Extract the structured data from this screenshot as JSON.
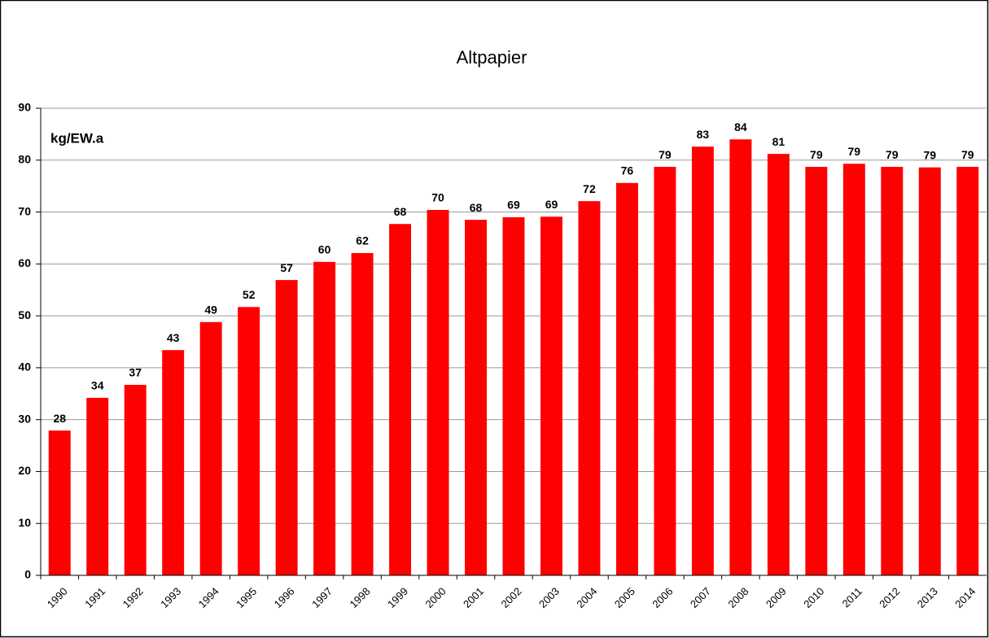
{
  "chart_data": {
    "type": "bar",
    "title": "Altpapier",
    "y_label": "kg/EW.a",
    "categories": [
      "1990",
      "1991",
      "1992",
      "1993",
      "1994",
      "1995",
      "1996",
      "1997",
      "1998",
      "1999",
      "2000",
      "2001",
      "2002",
      "2003",
      "2004",
      "2005",
      "2006",
      "2007",
      "2008",
      "2009",
      "2010",
      "2011",
      "2012",
      "2013",
      "2014"
    ],
    "values": [
      27.9,
      34.2,
      36.7,
      43.4,
      48.8,
      51.7,
      56.9,
      60.4,
      62.1,
      67.7,
      70.4,
      68.5,
      69.0,
      69.1,
      72.1,
      75.6,
      78.7,
      82.6,
      84.0,
      81.2,
      78.7,
      79.3,
      78.7,
      78.6,
      78.7
    ],
    "value_labels": [
      "28",
      "34",
      "37",
      "43",
      "49",
      "52",
      "57",
      "60",
      "62",
      "68",
      "70",
      "68",
      "69",
      "69",
      "72",
      "76",
      "79",
      "83",
      "84",
      "81",
      "79",
      "79",
      "79",
      "79",
      "79"
    ],
    "color": "#ff0000",
    "ylim": [
      0,
      90
    ],
    "yticks": [
      0,
      10,
      20,
      30,
      40,
      50,
      60,
      70,
      80,
      90
    ],
    "grid": true
  }
}
